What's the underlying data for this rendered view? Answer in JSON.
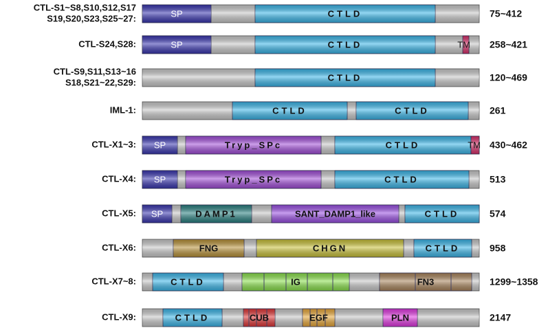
{
  "rows": [
    {
      "label": [
        "CTL-S1~S8,S10,S12,S17",
        "S19,S20,S23,S25~27:"
      ],
      "length": "75~412",
      "domains": [
        {
          "label": "SP"
        },
        {
          "label": "CTLD"
        }
      ]
    },
    {
      "label": [
        "CTL-S24,S28:"
      ],
      "length": "258~421",
      "domains": [
        {
          "label": "SP"
        },
        {
          "label": "CTLD"
        },
        {
          "label": "TM"
        }
      ]
    },
    {
      "label": [
        "CTL-S9,S11,S13~16",
        "S18,S21~22,S29:"
      ],
      "length": "120~469",
      "domains": [
        {
          "label": "CTLD"
        }
      ]
    },
    {
      "label": [
        "IML-1:"
      ],
      "length": "261",
      "domains": [
        {
          "label": "CTLD"
        },
        {
          "label": "CTLD"
        }
      ]
    },
    {
      "label": [
        "CTL-X1~3:"
      ],
      "length": "430~462",
      "domains": [
        {
          "label": "SP"
        },
        {
          "label": "Tryp_SPc"
        },
        {
          "label": "CTLD"
        },
        {
          "label": "TM"
        }
      ]
    },
    {
      "label": [
        "CTL-X4:"
      ],
      "length": "513",
      "domains": [
        {
          "label": "SP"
        },
        {
          "label": "Tryp_SPc"
        },
        {
          "label": "CTLD"
        }
      ]
    },
    {
      "label": [
        "CTL-X5:"
      ],
      "length": "574",
      "domains": [
        {
          "label": "SP"
        },
        {
          "label": "DAMP1"
        },
        {
          "label": "SANT_DAMP1_like"
        },
        {
          "label": "CTLD"
        }
      ]
    },
    {
      "label": [
        "CTL-X6:"
      ],
      "length": "958",
      "domains": [
        {
          "label": "FNG"
        },
        {
          "label": "CHGN"
        },
        {
          "label": "CTLD"
        }
      ]
    },
    {
      "label": [
        "CTL-X7~8:"
      ],
      "length": "1299~1358",
      "domains": [
        {
          "label": "CTLD"
        },
        {
          "label": "IG"
        },
        {
          "label": "FN3"
        }
      ]
    },
    {
      "label": [
        "CTL-X9:"
      ],
      "length": "2147",
      "domains": [
        {
          "label": "CTLD"
        },
        {
          "label": "CUB"
        },
        {
          "label": "EGF"
        },
        {
          "label": "PLN"
        }
      ]
    }
  ]
}
